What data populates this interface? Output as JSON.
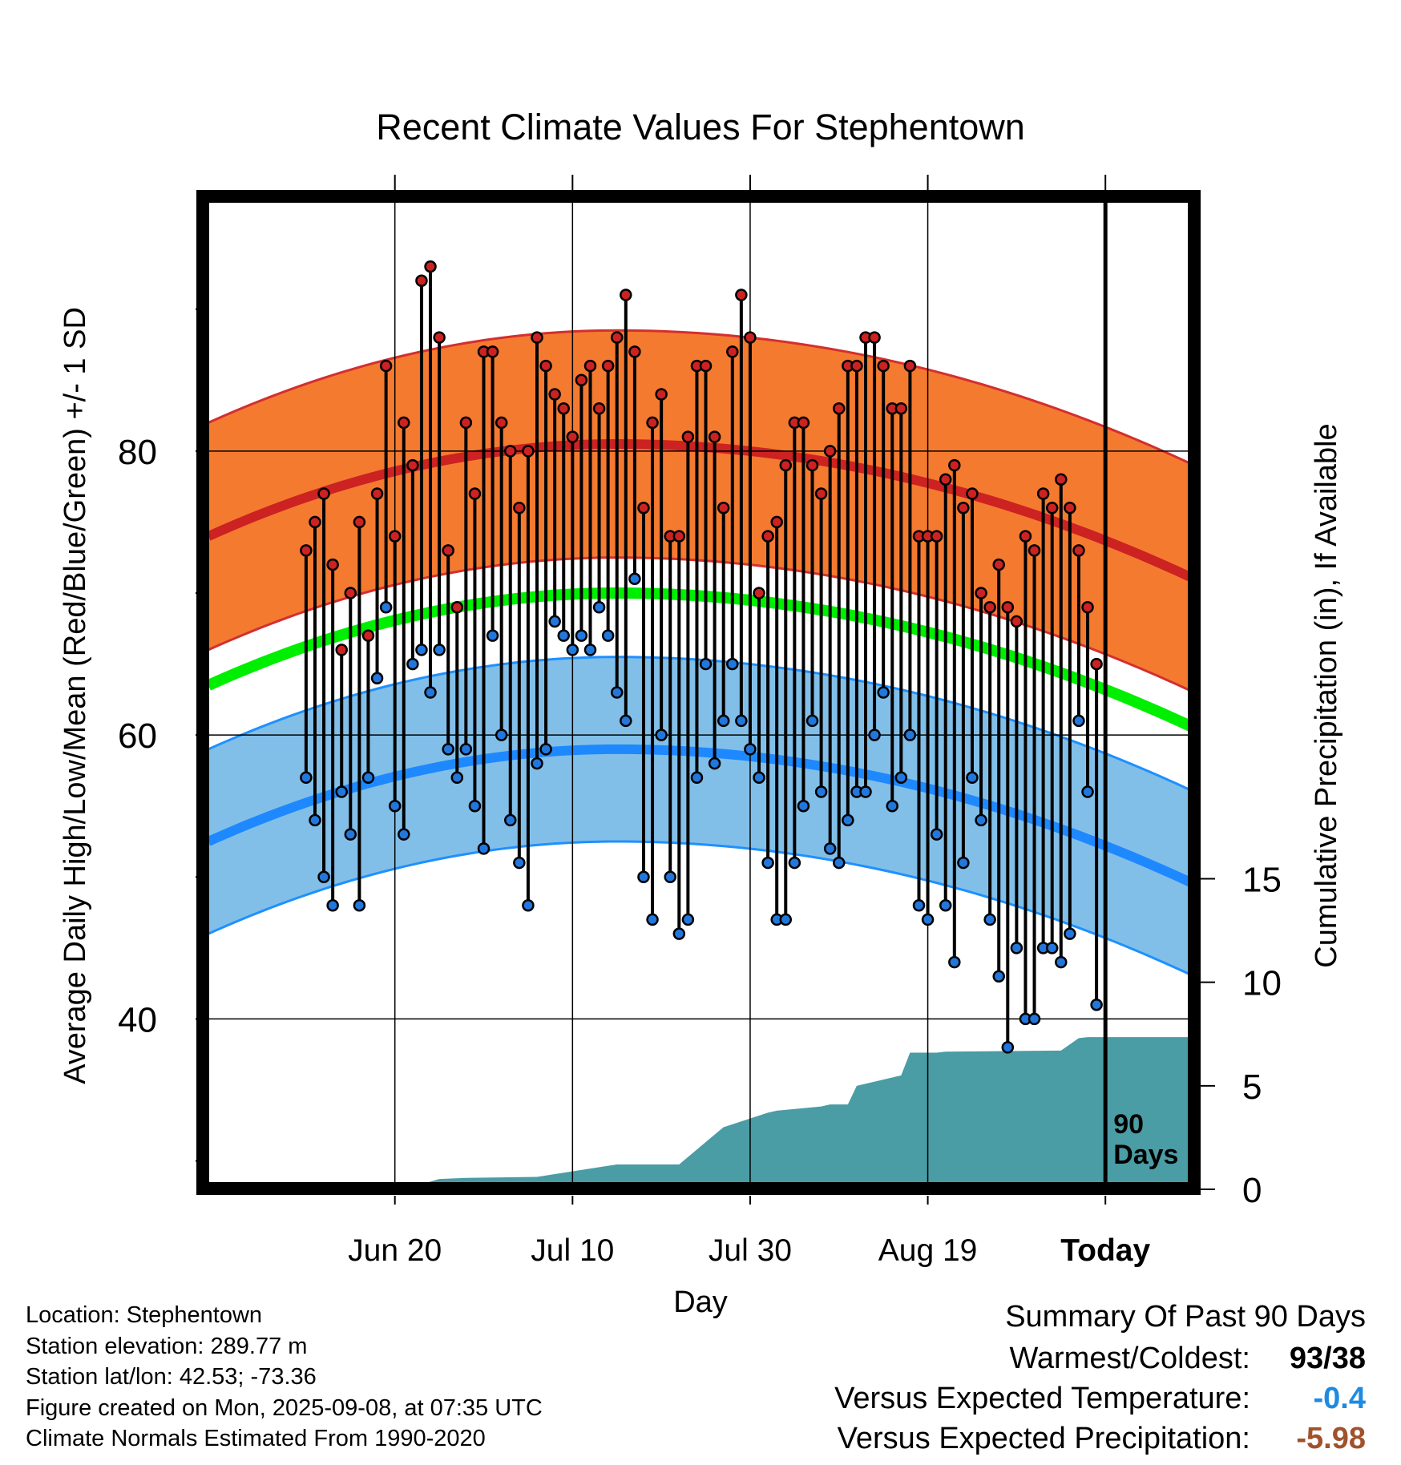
{
  "chart_data": {
    "type": "line",
    "title": "Recent Climate Values For Stephentown",
    "xlabel": "Day",
    "ylabel": "Average Daily High/Low/Mean (Red/Blue/Green) +/- 1 SD",
    "y2label": "Cumulative Precipitation (in), If Available",
    "x_tick_labels": [
      "Jun 20",
      "Jul 10",
      "Jul 30",
      "Aug 19",
      "Today"
    ],
    "y_tick_labels": [
      "40",
      "60",
      "80"
    ],
    "y2_tick_labels": [
      "0",
      "5",
      "10",
      "15"
    ],
    "xlim": [
      -101,
      10
    ],
    "ylim": [
      28,
      98
    ],
    "y2lim": [
      0,
      48
    ],
    "today_label": "90 Days",
    "normals": {
      "high_mean": {
        "start": 74.0,
        "peak": 80.5,
        "end": 71.0,
        "sd": 8.0
      },
      "low_mean": {
        "start": 52.5,
        "peak": 59.0,
        "end": 49.5,
        "sd": 6.5
      },
      "daily_mean": {
        "start": 63.5,
        "peak": 70.0,
        "end": 60.5
      }
    },
    "days": [
      -90,
      -89,
      -88,
      -87,
      -86,
      -85,
      -84,
      -83,
      -82,
      -81,
      -80,
      -79,
      -78,
      -77,
      -76,
      -75,
      -74,
      -73,
      -72,
      -71,
      -70,
      -69,
      -68,
      -67,
      -66,
      -65,
      -64,
      -63,
      -62,
      -61,
      -60,
      -59,
      -58,
      -57,
      -56,
      -55,
      -54,
      -53,
      -52,
      -51,
      -50,
      -49,
      -48,
      -47,
      -46,
      -45,
      -44,
      -43,
      -42,
      -41,
      -40,
      -39,
      -38,
      -37,
      -36,
      -35,
      -34,
      -33,
      -32,
      -31,
      -30,
      -29,
      -28,
      -27,
      -26,
      -25,
      -24,
      -23,
      -22,
      -21,
      -20,
      -19,
      -18,
      -17,
      -16,
      -15,
      -14,
      -13,
      -12,
      -11,
      -10,
      -9,
      -8,
      -7,
      -6,
      -5,
      -4,
      -3,
      -2,
      -1
    ],
    "series": [
      {
        "name": "High",
        "color": "#cc2222",
        "values": [
          73,
          75,
          77,
          72,
          66,
          70,
          75,
          67,
          77,
          86,
          74,
          82,
          79,
          92,
          93,
          88,
          73,
          69,
          82,
          77,
          87,
          87,
          82,
          80,
          76,
          80,
          88,
          86,
          84,
          83,
          81,
          85,
          86,
          83,
          86,
          88,
          91,
          87,
          76,
          82,
          84,
          74,
          74,
          81,
          86,
          86,
          81,
          76,
          87,
          91,
          88,
          70,
          74,
          75,
          79,
          82,
          82,
          79,
          77,
          80,
          83,
          86,
          86,
          88,
          88,
          86,
          83,
          83,
          86,
          74,
          74,
          74,
          78,
          79,
          76,
          77,
          70,
          69,
          72,
          69,
          68,
          74,
          73,
          77,
          76,
          78,
          76,
          73,
          69,
          65
        ]
      },
      {
        "name": "Low",
        "color": "#2277dd",
        "values": [
          57,
          54,
          50,
          48,
          56,
          53,
          48,
          57,
          64,
          69,
          55,
          53,
          65,
          66,
          63,
          66,
          59,
          57,
          59,
          55,
          52,
          67,
          60,
          54,
          51,
          48,
          58,
          59,
          68,
          67,
          66,
          67,
          66,
          69,
          67,
          63,
          61,
          71,
          50,
          47,
          60,
          50,
          46,
          47,
          57,
          65,
          58,
          61,
          65,
          61,
          59,
          57,
          51,
          47,
          47,
          51,
          55,
          61,
          56,
          52,
          51,
          54,
          56,
          56,
          60,
          63,
          55,
          57,
          60,
          48,
          47,
          53,
          48,
          44,
          51,
          57,
          54,
          47,
          43,
          38,
          45,
          40,
          40,
          45,
          45,
          44,
          46,
          61,
          56,
          41
        ]
      }
    ],
    "precipitation": {
      "days": [
        -90,
        -80,
        -79,
        -75,
        -72,
        -64,
        -58,
        -55,
        -51,
        -48,
        -43,
        -38,
        -37,
        -32,
        -31,
        -29,
        -28,
        -23,
        -22,
        -21,
        -20,
        -19,
        -18,
        -5,
        -4,
        -3,
        -2,
        -1,
        -0.01
      ],
      "values": [
        0.0,
        0.0,
        0.0,
        0.5,
        0.55,
        0.6,
        1.0,
        1.2,
        1.2,
        1.2,
        3.0,
        3.7,
        3.8,
        4.0,
        4.1,
        4.1,
        5.0,
        5.5,
        6.6,
        6.6,
        6.6,
        6.6,
        6.65,
        6.7,
        7.0,
        7.3,
        7.35,
        7.35,
        7.35
      ]
    }
  },
  "info": {
    "location": "Location: Stephentown",
    "elevation": "Station elevation: 289.77 m",
    "latlon": "Station lat/lon: 42.53; -73.36",
    "created": "Figure created on Mon, 2025-09-08, at 07:35 UTC",
    "normals": "Climate Normals Estimated From 1990-2020"
  },
  "summary": {
    "title": "Summary Of Past 90 Days",
    "warm_cold_label": "Warmest/Coldest:",
    "warmest": "93",
    "sep": "/",
    "coldest": "38",
    "temp_label": "Versus Expected Temperature:",
    "temp_value": "-0.4",
    "temp_color": "#1f8ae0",
    "precip_label": "Versus Expected Precipitation:",
    "precip_value": "-5.98",
    "precip_color": "#a0522d"
  }
}
